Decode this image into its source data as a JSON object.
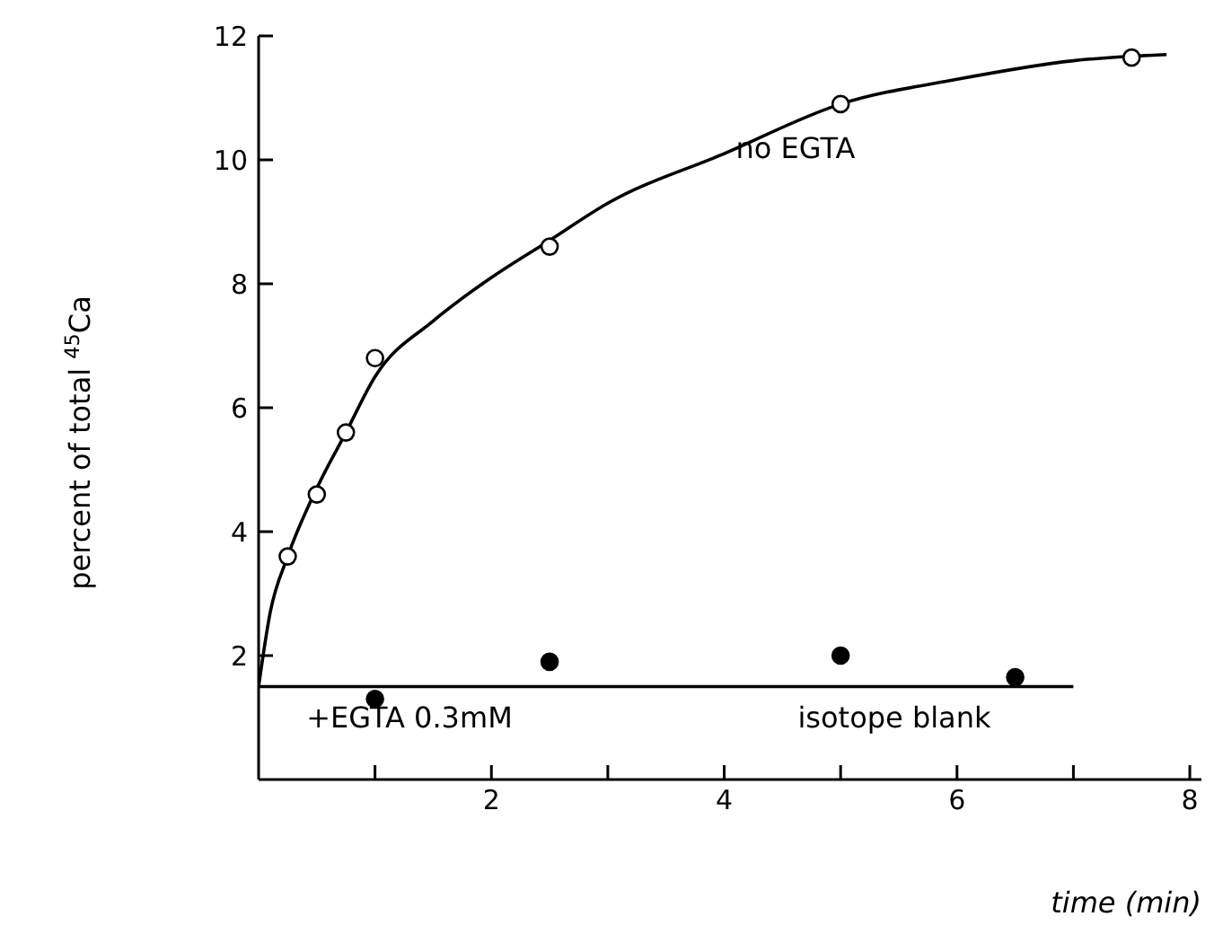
{
  "chart_data": {
    "type": "scatter",
    "xlabel": "time (min)",
    "ylabel": "percent of total $^{45}$Ca",
    "xlim": [
      0,
      8.1
    ],
    "ylim": [
      0,
      12
    ],
    "xticks": [
      {
        "value": 1,
        "label": null
      },
      2,
      {
        "value": 3,
        "label": null
      },
      4,
      {
        "value": 5,
        "label": null
      },
      6,
      {
        "value": 7,
        "label": null
      },
      8
    ],
    "yticks": [
      2,
      4,
      6,
      8,
      10,
      12
    ],
    "grid": false,
    "legend": false,
    "series": [
      {
        "color": "#ffffff",
        "marker": "circle",
        "x": [
          0.25,
          0.5,
          0.75,
          1.0,
          2.5,
          5.0,
          7.5
        ],
        "values": [
          3.6,
          4.6,
          5.6,
          6.8,
          8.6,
          10.9,
          11.65
        ]
      },
      {
        "type": "line",
        "color": "#000000",
        "marker": "none",
        "line_style": "solid",
        "x": [
          0,
          0.1,
          0.25,
          0.5,
          0.75,
          1,
          1.5,
          2,
          2.5,
          3,
          4,
          5,
          6,
          7,
          7.8
        ],
        "values": [
          1.5,
          2.7,
          3.6,
          4.7,
          5.6,
          6.5,
          7.4,
          8.1,
          8.7,
          9.3,
          10.1,
          10.9,
          11.3,
          11.6,
          11.7
        ]
      },
      {
        "color": "#000000",
        "marker": "circle",
        "x": [
          1.0,
          2.5,
          5.0,
          6.5
        ],
        "values": [
          1.3,
          1.9,
          2.0,
          1.65
        ]
      },
      {
        "type": "line",
        "color": "#000000",
        "marker": "none",
        "line_style": "solid",
        "x": [
          0,
          7
        ],
        "values": [
          1.5,
          1.5
        ]
      }
    ],
    "annotations": [
      "no EGTA",
      "+EGTA 0.3mM",
      "isotope blank"
    ]
  }
}
